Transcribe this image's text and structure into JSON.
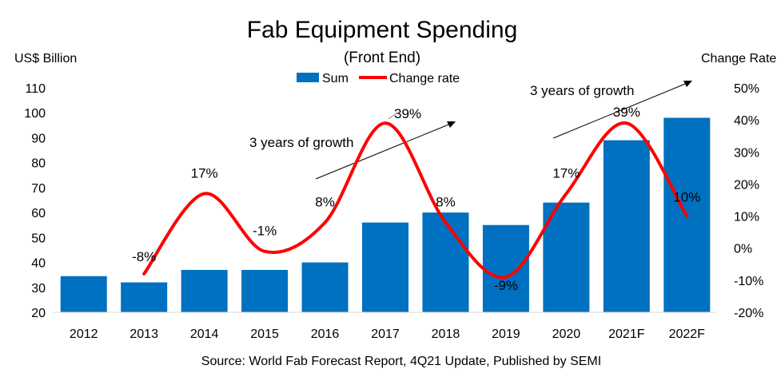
{
  "chart_data": {
    "type": "bar",
    "title": "Fab Equipment Spending",
    "subtitle": "(Front End)",
    "ylabel_left": "US$ Billion",
    "ylabel_right": "Change Rate",
    "ylim_left": [
      20,
      110
    ],
    "ylim_right": [
      -20,
      50
    ],
    "yticks_left": [
      "20",
      "30",
      "40",
      "50",
      "60",
      "70",
      "80",
      "90",
      "100",
      "110"
    ],
    "yticks_right": [
      "-20%",
      "-10%",
      "0%",
      "10%",
      "20%",
      "30%",
      "40%",
      "50%"
    ],
    "categories": [
      "2012",
      "2013",
      "2014",
      "2015",
      "2016",
      "2017",
      "2018",
      "2019",
      "2020",
      "2021F",
      "2022F"
    ],
    "series": [
      {
        "name": "Sum",
        "type": "bar",
        "axis": "left",
        "color": "#0070c0",
        "values": [
          34.5,
          32,
          37,
          37,
          40,
          56,
          60,
          55,
          64,
          89,
          98
        ]
      },
      {
        "name": "Change rate",
        "type": "line",
        "axis": "right",
        "color": "#ff0000",
        "values": [
          null,
          -8,
          17,
          -1,
          8,
          39,
          8,
          -9,
          17,
          39,
          10
        ],
        "labels": [
          "",
          "-8%",
          "17%",
          "-1%",
          "8%",
          "39%",
          "8%",
          "-9%",
          "17%",
          "39%",
          "10%"
        ]
      }
    ],
    "annotations": [
      {
        "text": "3 years of growth",
        "period": "2016-2018"
      },
      {
        "text": "3 years of growth",
        "period": "2020-2022F"
      }
    ],
    "legend_position": "top-center",
    "grid": false
  },
  "source": "Source: World Fab Forecast Report, 4Q21 Update, Published by SEMI"
}
